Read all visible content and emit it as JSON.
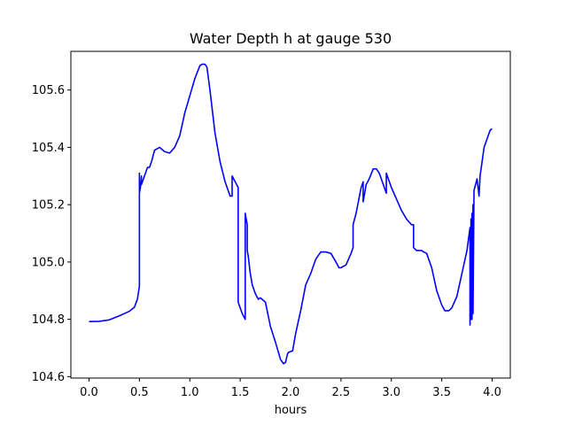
{
  "chart_data": {
    "type": "line",
    "title": "Water Depth h at gauge 530",
    "xlabel": "hours",
    "ylabel": "",
    "xlim": [
      -0.18,
      4.18
    ],
    "ylim": [
      104.595,
      105.735
    ],
    "xticks": [
      0.0,
      0.5,
      1.0,
      1.5,
      2.0,
      2.5,
      3.0,
      3.5,
      4.0
    ],
    "xtick_labels": [
      "0.0",
      "0.5",
      "1.0",
      "1.5",
      "2.0",
      "2.5",
      "3.0",
      "3.5",
      "4.0"
    ],
    "yticks": [
      104.6,
      104.8,
      105.0,
      105.2,
      105.4,
      105.6
    ],
    "ytick_labels": [
      "104.6",
      "104.8",
      "105.0",
      "105.2",
      "105.4",
      "105.6"
    ],
    "grid": false,
    "series": [
      {
        "color": "#0000ff",
        "x": [
          0.0,
          0.1,
          0.2,
          0.3,
          0.4,
          0.45,
          0.48,
          0.5,
          0.5,
          0.5,
          0.51,
          0.52,
          0.52,
          0.55,
          0.58,
          0.6,
          0.62,
          0.65,
          0.7,
          0.75,
          0.8,
          0.85,
          0.9,
          0.95,
          1.0,
          1.05,
          1.1,
          1.12,
          1.15,
          1.17,
          1.2,
          1.25,
          1.3,
          1.35,
          1.4,
          1.42,
          1.42,
          1.45,
          1.48,
          1.48,
          1.49,
          1.52,
          1.55,
          1.55,
          1.57,
          1.57,
          1.58,
          1.6,
          1.62,
          1.65,
          1.68,
          1.7,
          1.75,
          1.8,
          1.85,
          1.9,
          1.93,
          1.95,
          1.97,
          1.98,
          2.02,
          2.05,
          2.1,
          2.15,
          2.2,
          2.25,
          2.3,
          2.35,
          2.4,
          2.45,
          2.48,
          2.5,
          2.55,
          2.6,
          2.62,
          2.62,
          2.65,
          2.7,
          2.72,
          2.72,
          2.75,
          2.78,
          2.82,
          2.85,
          2.88,
          2.92,
          2.95,
          2.95,
          3.0,
          3.05,
          3.1,
          3.15,
          3.2,
          3.22,
          3.22,
          3.25,
          3.3,
          3.32,
          3.35,
          3.4,
          3.45,
          3.5,
          3.53,
          3.57,
          3.6,
          3.65,
          3.7,
          3.75,
          3.78,
          3.78,
          3.79,
          3.79,
          3.8,
          3.8,
          3.81,
          3.81,
          3.82,
          3.85,
          3.87,
          3.88,
          3.9,
          3.92,
          3.95,
          3.98,
          4.0
        ],
        "y": [
          104.792,
          104.793,
          104.798,
          104.812,
          104.828,
          104.842,
          104.87,
          104.915,
          105.31,
          105.24,
          105.26,
          105.3,
          105.27,
          105.3,
          105.33,
          105.33,
          105.35,
          105.39,
          105.4,
          105.385,
          105.38,
          105.4,
          105.44,
          105.52,
          105.58,
          105.64,
          105.685,
          105.69,
          105.69,
          105.68,
          105.6,
          105.45,
          105.35,
          105.28,
          105.23,
          105.23,
          105.3,
          105.28,
          105.26,
          104.86,
          104.85,
          104.82,
          104.8,
          105.17,
          105.13,
          105.04,
          105.02,
          104.96,
          104.92,
          104.89,
          104.87,
          104.875,
          104.86,
          104.775,
          104.72,
          104.66,
          104.645,
          104.65,
          104.68,
          104.685,
          104.69,
          104.75,
          104.83,
          104.92,
          104.96,
          105.01,
          105.035,
          105.035,
          105.03,
          105.0,
          104.98,
          104.98,
          104.99,
          105.03,
          105.05,
          105.13,
          105.17,
          105.26,
          105.28,
          105.21,
          105.27,
          105.29,
          105.325,
          105.325,
          105.31,
          105.27,
          105.24,
          105.31,
          105.26,
          105.22,
          105.18,
          105.15,
          105.13,
          105.13,
          105.05,
          105.04,
          105.04,
          105.035,
          105.03,
          104.98,
          104.9,
          104.85,
          104.83,
          104.83,
          104.84,
          104.88,
          104.96,
          105.04,
          105.12,
          104.78,
          105.15,
          104.8,
          105.17,
          104.8,
          105.2,
          104.82,
          105.25,
          105.29,
          105.23,
          105.3,
          105.35,
          105.4,
          105.43,
          105.46,
          105.465
        ]
      }
    ]
  }
}
